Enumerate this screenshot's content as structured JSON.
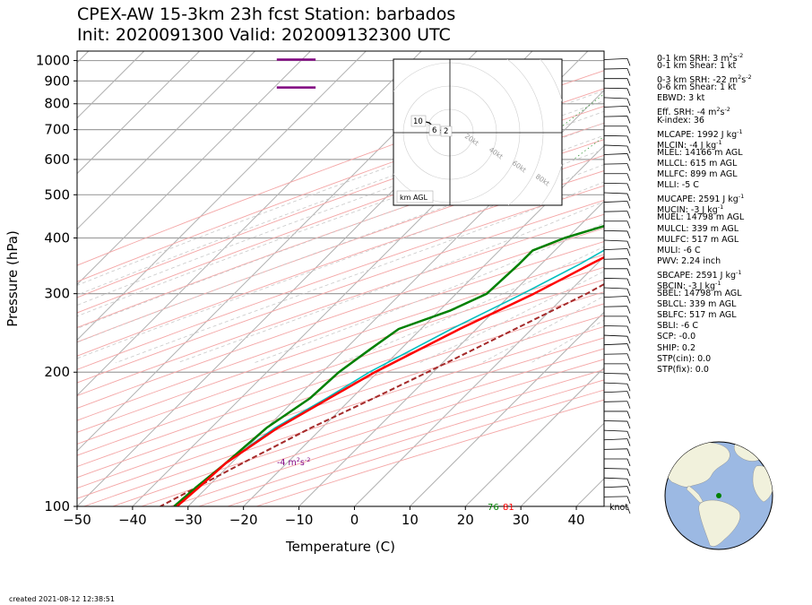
{
  "title_line1": "CPEX-AW 15-3km  23h fcst  Station: barbados",
  "title_line2": "Init: 2020091300  Valid: 202009132300 UTC",
  "created": "created 2021-08-12 12:38:51",
  "colors": {
    "temperature": "#ff0000",
    "dewpoint": "#008000",
    "wetbulb": "#00bfbf",
    "parcel": "#a52a2a",
    "srh_bar": "#800080",
    "isotherm": "#b0b0b0",
    "isobar": "#a0a0a0",
    "dry_adiabat": "#f4a6a6",
    "mixing_ratio": "#3a9a3a"
  },
  "params": [
    {
      "label": "0-1 km SRH: 3 m",
      "sup": "2",
      "mid": "s",
      "sup2": "-2"
    },
    {
      "label": "0-1 km Shear: 1 kt"
    },
    {
      "label": "0-3 km SRH: -22 m",
      "sup": "2",
      "mid": "s",
      "sup2": "-2"
    },
    {
      "label": "0-6 km Shear: 1 kt"
    },
    {
      "label": "EBWD: 3 kt"
    },
    {
      "label": "Eff. SRH: -4 m",
      "sup": "2",
      "mid": "s",
      "sup2": "-2"
    },
    {
      "label": "K-index: 36"
    },
    {
      "label": "MLCAPE: 1992 J kg",
      "sup": "-1"
    },
    {
      "label": "MLCIN: -4 J kg",
      "sup": "-1"
    },
    {
      "label": "MLEL: 14166 m AGL"
    },
    {
      "label": "MLLCL: 615 m AGL"
    },
    {
      "label": "MLLFC: 899 m AGL"
    },
    {
      "label": "MLLI: -5 C"
    },
    {
      "label": "MUCAPE: 2591 J kg",
      "sup": "-1"
    },
    {
      "label": "MUCIN: -3 J kg",
      "sup": "-1"
    },
    {
      "label": "MUEL: 14798 m AGL"
    },
    {
      "label": "MULCL: 339 m AGL"
    },
    {
      "label": "MULFC: 517 m AGL"
    },
    {
      "label": "MULI: -6 C"
    },
    {
      "label": "PWV: 2.24 inch"
    },
    {
      "label": "SBCAPE: 2591 J kg",
      "sup": "-1"
    },
    {
      "label": "SBCIN: -3 J kg",
      "sup": "-1"
    },
    {
      "label": "SBEL: 14798 m AGL"
    },
    {
      "label": "SBLCL: 339 m AGL"
    },
    {
      "label": "SBLFC: 517 m AGL"
    },
    {
      "label": "SBLI: -6 C"
    },
    {
      "label": "SCP: -0.0"
    },
    {
      "label": "SHIP: 0.2"
    },
    {
      "label": "STP(cin): 0.0"
    },
    {
      "label": "STP(fix): 0.0"
    }
  ],
  "hodograph": {
    "ring_labels": [
      "20kt",
      "40kt",
      "60kt",
      "80kt"
    ],
    "height_labels": [
      "10",
      "6",
      "2"
    ],
    "legend": "km AGL"
  },
  "surface_labels": {
    "dewpoint": "76",
    "temperature": "81"
  },
  "srh_label": "-4 m",
  "srh_label_sup": "2",
  "srh_label_mid": "s",
  "srh_label_sup2": "-2",
  "barb_unit": "knot",
  "chart_data": {
    "type": "line",
    "xlabel": "Temperature (C)",
    "ylabel": "Pressure (hPa)",
    "xlim": [
      -50,
      45
    ],
    "ylim": [
      1050,
      100
    ],
    "y_scale": "log",
    "x_ticks": [
      -50,
      -40,
      -30,
      -20,
      -10,
      0,
      10,
      20,
      30,
      40
    ],
    "y_ticks": [
      100,
      200,
      300,
      400,
      500,
      600,
      700,
      800,
      900,
      1000
    ],
    "series": [
      {
        "key": "temperature",
        "pressure": [
          1013,
          1000,
          975,
          950,
          925,
          900,
          875,
          850,
          800,
          750,
          700,
          650,
          600,
          550,
          500,
          450,
          400,
          350,
          300,
          250,
          200,
          175,
          150,
          125,
          110,
          100
        ],
        "values": [
          28.5,
          27,
          25,
          24.5,
          23.5,
          22,
          21,
          20,
          18,
          16.5,
          15,
          14,
          12.5,
          10.5,
          8,
          6,
          3.5,
          -1,
          -6,
          -13,
          -20.5,
          -24,
          -28,
          -31,
          -31.5,
          -32
        ]
      },
      {
        "key": "dewpoint",
        "pressure": [
          1013,
          1000,
          975,
          950,
          925,
          900,
          875,
          850,
          800,
          750,
          700,
          650,
          600,
          550,
          500,
          450,
          400,
          375,
          350,
          300,
          275,
          250,
          225,
          200,
          175,
          150,
          125,
          110,
          100
        ],
        "values": [
          25,
          24.5,
          24,
          23,
          22.5,
          22,
          20,
          18,
          17,
          17,
          16,
          15,
          11,
          7,
          3,
          -1,
          -10.5,
          -14,
          -14,
          -14.5,
          -18,
          -24,
          -25.5,
          -27,
          -27.5,
          -30,
          -31,
          -32,
          -32.5
        ]
      },
      {
        "key": "wetbulb",
        "pressure": [
          1013,
          1000,
          975,
          950,
          925,
          900,
          875,
          850,
          800,
          750,
          700,
          650,
          600,
          550,
          500,
          450,
          400,
          350,
          300,
          250,
          200,
          175,
          150,
          125,
          110,
          100
        ],
        "values": [
          26,
          25,
          24.5,
          23.5,
          22.5,
          21.5,
          20,
          19,
          17.5,
          16.8,
          15.5,
          14,
          11.5,
          9,
          6.5,
          4,
          0.5,
          -3,
          -8,
          -14.5,
          -21.5,
          -24.5,
          -28.5,
          -31,
          -31.5,
          -32
        ]
      },
      {
        "key": "parcel",
        "pressure": [
          1013,
          1000,
          975,
          950,
          925,
          900,
          850,
          800,
          750,
          700,
          650,
          600,
          550,
          500,
          450,
          400,
          350,
          300,
          250,
          200,
          175,
          150,
          125,
          100
        ],
        "values": [
          31,
          29.5,
          28,
          27.5,
          27,
          26.5,
          25.5,
          24.5,
          24,
          23,
          21.5,
          20,
          18.5,
          16.5,
          14.5,
          12,
          8,
          3.5,
          -3,
          -11,
          -16,
          -22,
          -28,
          -35
        ]
      }
    ],
    "srh_bars": [
      {
        "pressure": 870,
        "t0": -14,
        "t1": -7
      },
      {
        "pressure": 1005,
        "t0": -14,
        "t1": -7
      }
    ]
  }
}
